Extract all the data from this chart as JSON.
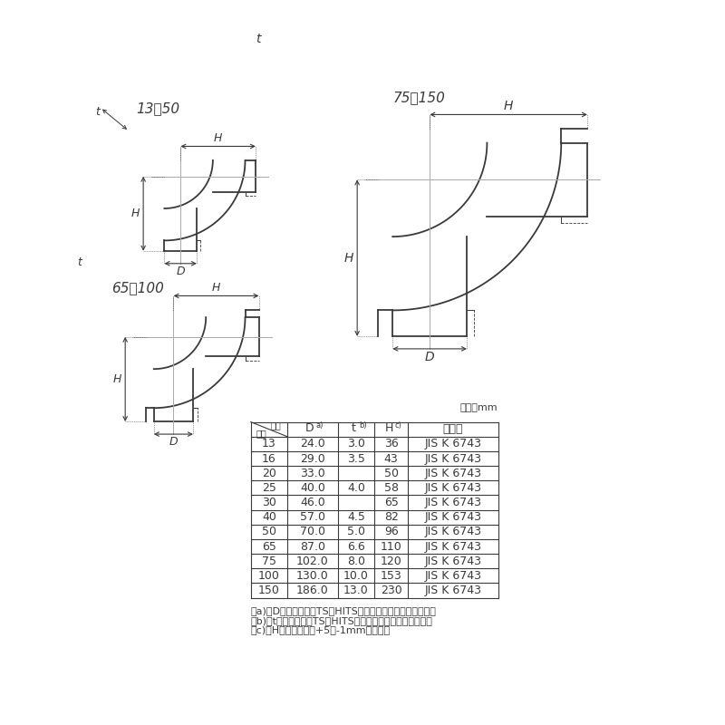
{
  "title_small": "13～50",
  "title_medium": "65・100",
  "title_large": "75・150",
  "line_color": "#3a3a3a",
  "cl_color": "#aaaaaa",
  "table_rows": [
    [
      "13",
      "24.0",
      "3.0",
      "36",
      "JIS K 6743"
    ],
    [
      "16",
      "29.0",
      "3.5",
      "43",
      "JIS K 6743"
    ],
    [
      "20",
      "33.0",
      "",
      "50",
      "JIS K 6743"
    ],
    [
      "25",
      "40.0",
      "4.0",
      "58",
      "JIS K 6743"
    ],
    [
      "30",
      "46.0",
      "",
      "65",
      "JIS K 6743"
    ],
    [
      "40",
      "57.0",
      "4.5",
      "82",
      "JIS K 6743"
    ],
    [
      "50",
      "70.0",
      "5.0",
      "96",
      "JIS K 6743"
    ],
    [
      "65",
      "87.0",
      "6.6",
      "110",
      "JIS K 6743"
    ],
    [
      "75",
      "102.0",
      "8.0",
      "120",
      "JIS K 6743"
    ],
    [
      "100",
      "130.0",
      "10.0",
      "153",
      "JIS K 6743"
    ],
    [
      "150",
      "186.0",
      "13.0",
      "230",
      "JIS K 6743"
    ]
  ]
}
